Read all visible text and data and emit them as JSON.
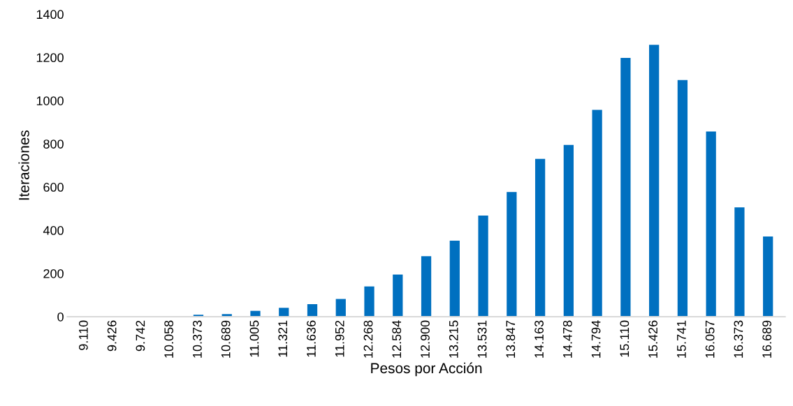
{
  "chart_data": {
    "type": "bar",
    "xlabel": "Pesos por Acción",
    "ylabel": "Iteraciones",
    "categories": [
      "9.110",
      "9.426",
      "9.742",
      "10.058",
      "10.373",
      "10.689",
      "11.005",
      "11.321",
      "11.636",
      "11.952",
      "12.268",
      "12.584",
      "12.900",
      "13.215",
      "13.531",
      "13.847",
      "14.163",
      "14.478",
      "14.794",
      "15.110",
      "15.426",
      "15.741",
      "16.057",
      "16.373",
      "16.689"
    ],
    "values": [
      0,
      0,
      3,
      1,
      9,
      12,
      27,
      41,
      58,
      82,
      140,
      195,
      280,
      352,
      468,
      577,
      730,
      795,
      957,
      1198,
      1258,
      1095,
      857,
      506,
      371
    ],
    "color": "#0070c0",
    "ylim": [
      0,
      1400
    ],
    "yticks": [
      0,
      200,
      400,
      600,
      800,
      1000,
      1200,
      1400
    ],
    "grid": false
  }
}
